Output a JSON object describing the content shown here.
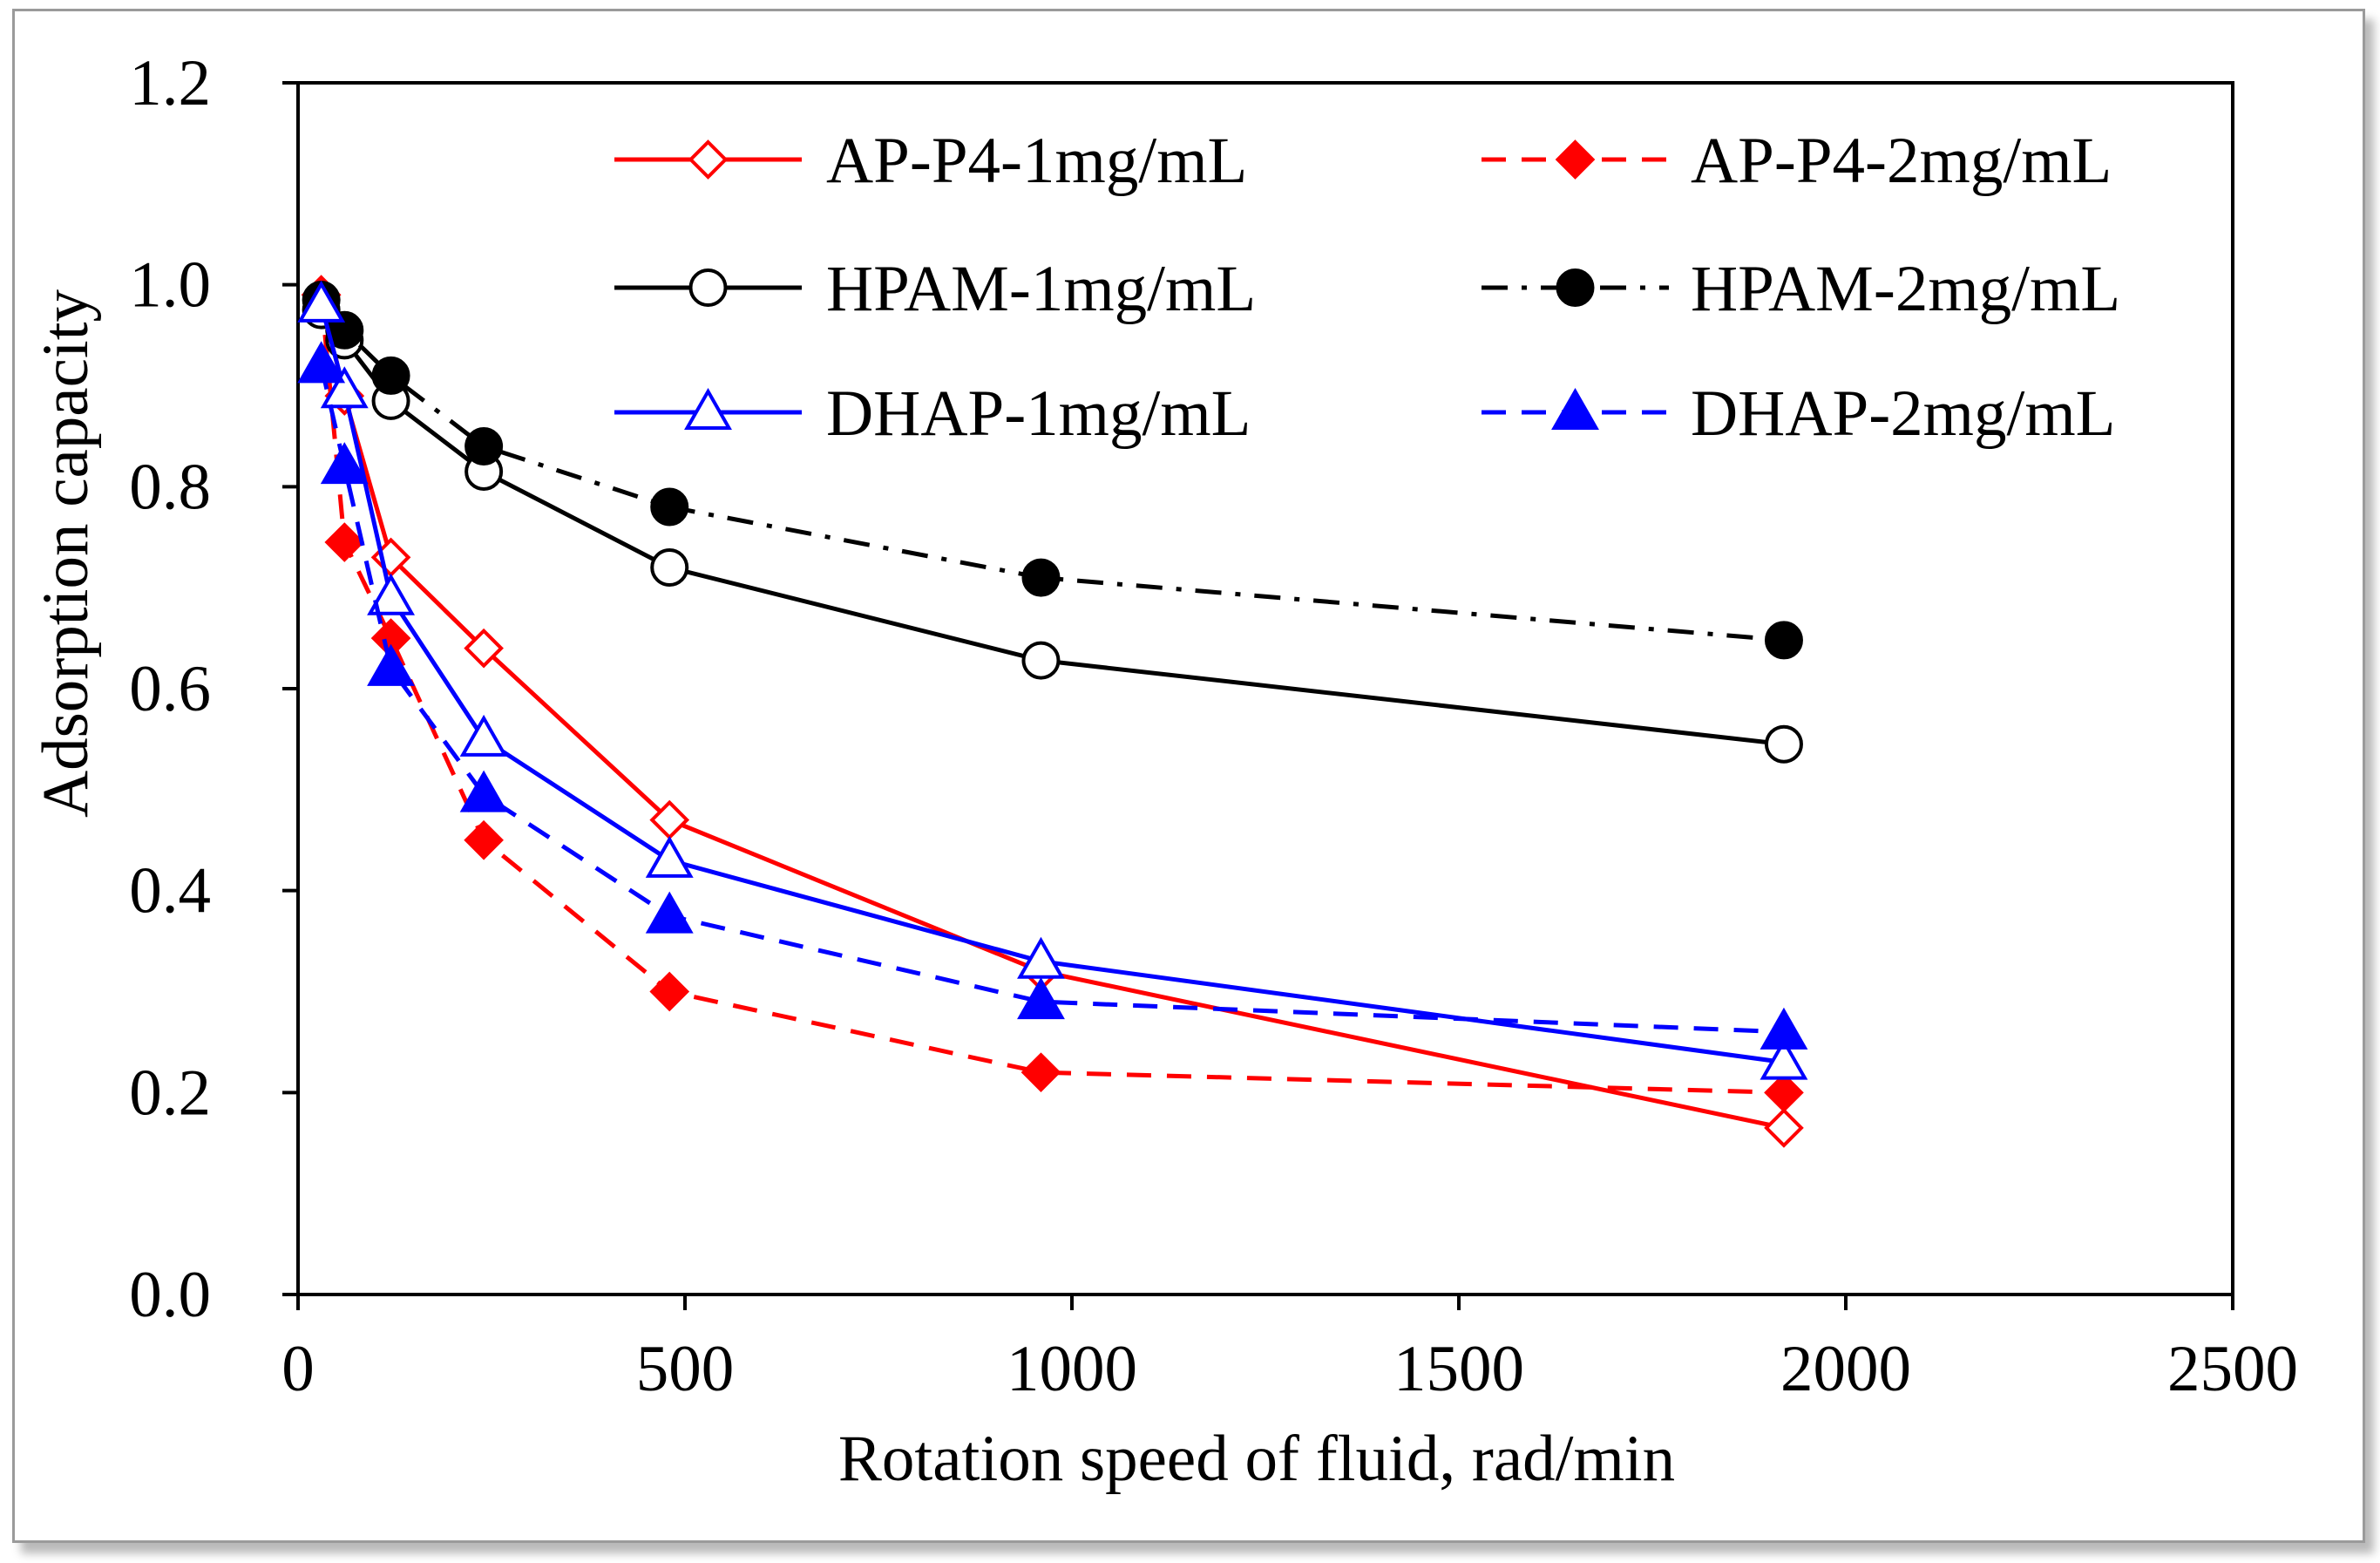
{
  "chart_data": {
    "type": "line",
    "title": "",
    "xlabel": "Rotation speed of fluid, rad/min",
    "ylabel": "Adsorption capacity",
    "xlim": [
      0,
      2500
    ],
    "ylim": [
      0,
      1.2
    ],
    "xticks": [
      "0",
      "500",
      "1000",
      "1500",
      "2000",
      "2500"
    ],
    "yticks": [
      "0.0",
      "0.2",
      "0.4",
      "0.6",
      "0.8",
      "1.0",
      "1.2"
    ],
    "grid": false,
    "legend_position": "top",
    "x": [
      30,
      60,
      120,
      240,
      480,
      960,
      1920
    ],
    "series": [
      {
        "name": "AP-P4-1mg/mL",
        "color": "#ff0000",
        "dash": "solid",
        "marker": "diamond-open",
        "values": [
          0.99,
          0.89,
          0.73,
          0.64,
          0.47,
          0.32,
          0.165
        ]
      },
      {
        "name": "AP-P4-2mg/mL",
        "color": "#ff0000",
        "dash": "dashed",
        "marker": "diamond-filled",
        "values": [
          0.99,
          0.745,
          0.65,
          0.45,
          0.3,
          0.22,
          0.2
        ]
      },
      {
        "name": "HPAM-1mg/mL",
        "color": "#000000",
        "dash": "solid",
        "marker": "circle-open",
        "values": [
          0.975,
          0.945,
          0.885,
          0.815,
          0.72,
          0.628,
          0.545
        ]
      },
      {
        "name": "HPAM-2mg/mL",
        "color": "#000000",
        "dash": "dashdot",
        "marker": "circle-filled",
        "values": [
          0.985,
          0.955,
          0.91,
          0.84,
          0.78,
          0.71,
          0.648
        ]
      },
      {
        "name": "DHAP-1mg/mL",
        "color": "#0000ff",
        "dash": "solid",
        "marker": "triangle-open",
        "values": [
          0.98,
          0.895,
          0.69,
          0.55,
          0.43,
          0.33,
          0.23
        ]
      },
      {
        "name": "DHAP-2mg/mL",
        "color": "#0000ff",
        "dash": "dashed",
        "marker": "triangle-filled",
        "values": [
          0.92,
          0.82,
          0.62,
          0.495,
          0.375,
          0.29,
          0.26
        ]
      }
    ]
  }
}
